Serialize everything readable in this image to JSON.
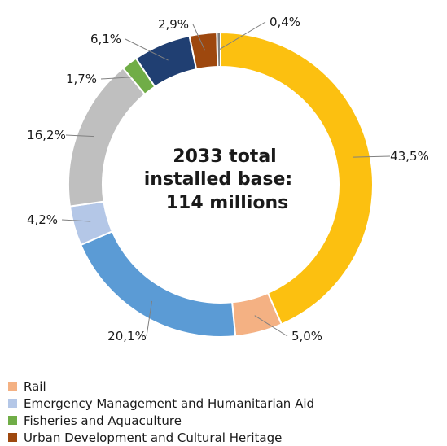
{
  "chart_data": {
    "type": "pie",
    "donut": true,
    "center_text": [
      "2033 total",
      "installed base:",
      "114 millions"
    ],
    "slices": [
      {
        "value": 43.5,
        "label": "43,5%",
        "color": "#FCC010"
      },
      {
        "value": 5.0,
        "label": "5,0%",
        "color": "#F4B183"
      },
      {
        "value": 20.1,
        "label": "20,1%",
        "color": "#5B9BD5"
      },
      {
        "value": 4.2,
        "label": "4,2%",
        "color": "#B4C7E7"
      },
      {
        "value": 16.2,
        "label": "16,2%",
        "color": "#BFBFBF"
      },
      {
        "value": 1.7,
        "label": "1,7%",
        "color": "#70AD47"
      },
      {
        "value": 6.1,
        "label": "6,1%",
        "color": "#203F72"
      },
      {
        "value": 2.9,
        "label": "2,9%",
        "color": "#9E480E"
      },
      {
        "value": 0.4,
        "label": "0,4%",
        "color": "#7F7F7F"
      }
    ],
    "legend": [
      {
        "name": "Rail",
        "color": "#F4B183"
      },
      {
        "name": "Emergency Management and Humanitarian Aid",
        "color": "#B4C7E7"
      },
      {
        "name": "Fisheries and Aquaculture",
        "color": "#70AD47"
      },
      {
        "name": "Urban Development and Cultural Heritage",
        "color": "#9E480E"
      }
    ],
    "legend_position": "bottom"
  }
}
